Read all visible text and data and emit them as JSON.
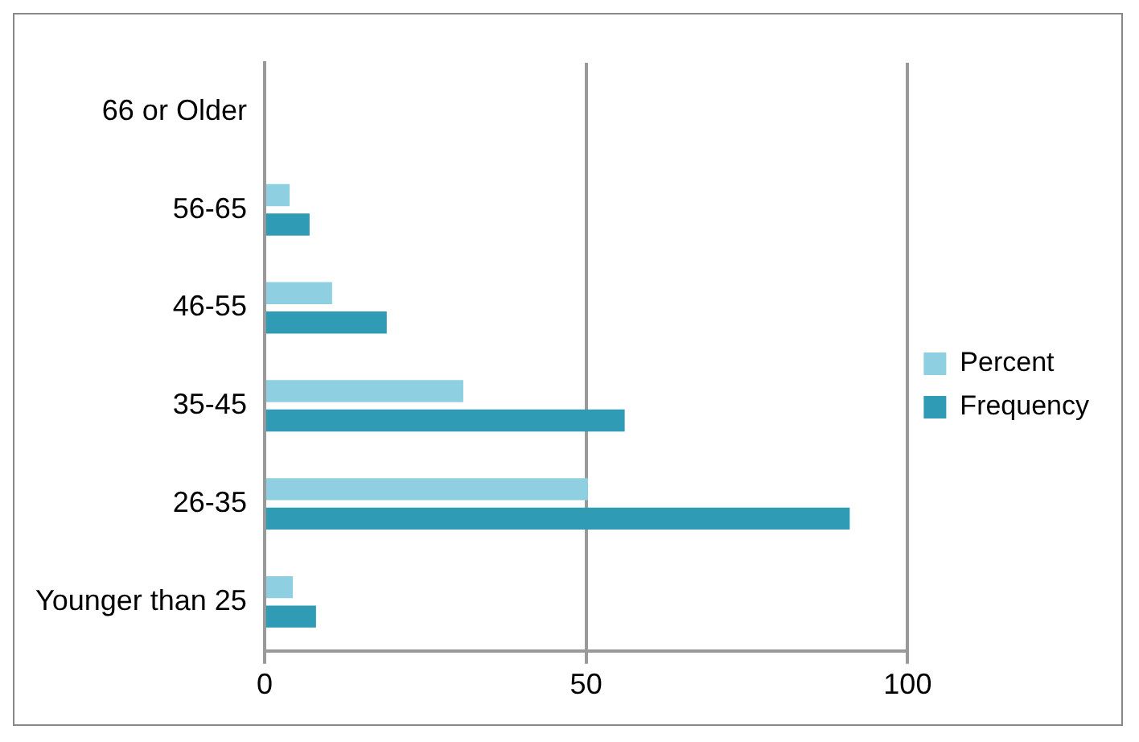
{
  "chart_data": {
    "type": "bar",
    "orientation": "horizontal",
    "categories": [
      "66 or Older",
      "56-65",
      "46-55",
      "35-45",
      "26-35",
      "Younger than 25"
    ],
    "series": [
      {
        "name": "Percent",
        "color": "#8ecfe2",
        "values": [
          0,
          3.9,
          10.5,
          30.9,
          50.3,
          4.4
        ]
      },
      {
        "name": "Frequency",
        "color": "#2f9bb4",
        "values": [
          0,
          7,
          19,
          56,
          91,
          8
        ]
      }
    ],
    "xlim": [
      0,
      100
    ],
    "xticks": [
      0,
      50,
      100
    ],
    "grid": "x",
    "legend": "right"
  }
}
